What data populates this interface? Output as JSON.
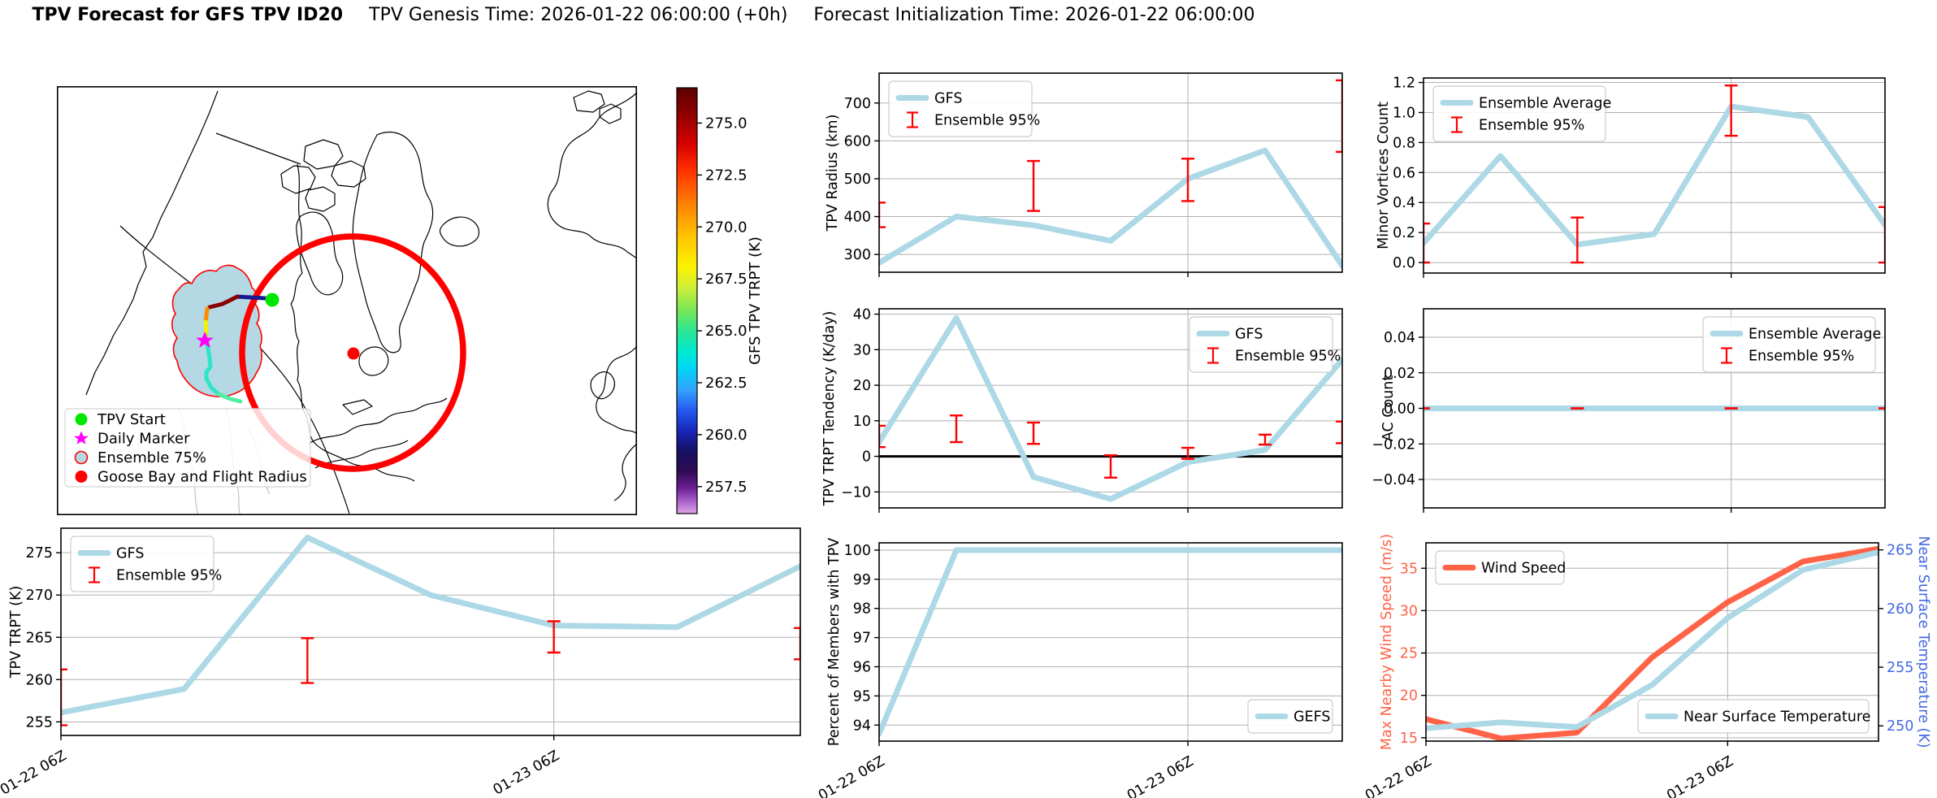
{
  "title": {
    "main": "TPV Forecast for GFS TPV ID20",
    "genesis": "TPV Genesis Time: 2026-01-22 06:00:00 (+0h)",
    "init": "Forecast Initialization Time: 2026-01-22 06:00:00"
  },
  "colors": {
    "series_blue": "#add8e6",
    "error_red": "#ff0000",
    "wind_orange": "#ff6347",
    "temp_axis_blue": "#4169e1",
    "grid": "#b0b0b0",
    "ensemble_fill": "#b4d8e4",
    "tpv_start_green": "#00e600",
    "daily_marker_magenta": "#ff00ff",
    "flight_radius_red": "#ff0000"
  },
  "time_axis": {
    "n_points": 7,
    "tick_indices": [
      0,
      4
    ],
    "tick_labels": [
      "01-22 06Z",
      "01-23 06Z"
    ]
  },
  "map": {
    "legend": [
      {
        "label": "TPV Start",
        "marker": "circle",
        "color": "#00e600"
      },
      {
        "label": "Daily Marker",
        "marker": "star",
        "color": "#ff00ff"
      },
      {
        "label": "Ensemble 75%",
        "marker": "circle-outline",
        "color": "#b4d8e4",
        "edge": "#ff0000"
      },
      {
        "label": "Goose Bay and Flight Radius",
        "marker": "circle",
        "color": "#ff0000"
      }
    ],
    "colorbar": {
      "label": "GFS TPV TRPT (K)",
      "ticks": [
        275.0,
        272.5,
        270.0,
        267.5,
        265.0,
        262.5,
        260.0,
        257.5
      ],
      "vmin": 256.2,
      "vmax": 276.7,
      "stops": [
        [
          0.0,
          "#5a0000"
        ],
        [
          0.06,
          "#8f0000"
        ],
        [
          0.13,
          "#d40000"
        ],
        [
          0.19,
          "#ff2d00"
        ],
        [
          0.27,
          "#ff7e00"
        ],
        [
          0.35,
          "#ffc400"
        ],
        [
          0.42,
          "#fdf300"
        ],
        [
          0.47,
          "#cdef3a"
        ],
        [
          0.52,
          "#7ce654"
        ],
        [
          0.57,
          "#2ee593"
        ],
        [
          0.62,
          "#00ead2"
        ],
        [
          0.66,
          "#00d5f5"
        ],
        [
          0.71,
          "#35a1ff"
        ],
        [
          0.76,
          "#2456ee"
        ],
        [
          0.81,
          "#1822b2"
        ],
        [
          0.855,
          "#151060"
        ],
        [
          0.9,
          "#2e0b54"
        ],
        [
          0.94,
          "#6b1e92"
        ],
        [
          0.97,
          "#a85fc8"
        ],
        [
          1.0,
          "#dba5e2"
        ]
      ]
    },
    "track_segment_colors": [
      "#cfa3ee",
      "#181890",
      "#8b0000",
      "#ff8c00",
      "#f2f200",
      "#bfe84a",
      "#2ee5c8",
      "#52eea2"
    ]
  },
  "chart_data": [
    {
      "id": "tpv_trpt",
      "type": "line",
      "ylabel": "TPV TRPT (K)",
      "ylim": [
        253.4,
        277.9
      ],
      "yticks": [
        {
          "v": 255,
          "t": "255"
        },
        {
          "v": 260,
          "t": "260"
        },
        {
          "v": 265,
          "t": "265"
        },
        {
          "v": 270,
          "t": "270"
        },
        {
          "v": 275,
          "t": "275"
        }
      ],
      "series": [
        {
          "name": "GFS",
          "color": "#add8e6",
          "width": 7,
          "values": [
            256.1,
            258.9,
            276.8,
            270.0,
            266.4,
            266.2,
            273.4
          ]
        }
      ],
      "errorbars": [
        {
          "x": 0,
          "lo": 254.6,
          "hi": 261.2
        },
        {
          "x": 2,
          "lo": 259.6,
          "hi": 264.9
        },
        {
          "x": 4,
          "lo": 263.2,
          "hi": 266.9
        },
        {
          "x": 6,
          "lo": 262.4,
          "hi": 266.1
        }
      ],
      "legends": [
        {
          "loc": "upper left",
          "items": [
            {
              "label": "GFS",
              "swatch": "line",
              "color": "#add8e6"
            },
            {
              "label": "Ensemble 95%",
              "swatch": "errorbar",
              "color": "#ff0000"
            }
          ]
        }
      ],
      "show_xticks": true
    },
    {
      "id": "tpv_radius",
      "type": "line",
      "ylabel": "TPV Radius (km)",
      "ylim": [
        253,
        779
      ],
      "yticks": [
        {
          "v": 300,
          "t": "300"
        },
        {
          "v": 400,
          "t": "400"
        },
        {
          "v": 500,
          "t": "500"
        },
        {
          "v": 600,
          "t": "600"
        },
        {
          "v": 700,
          "t": "700"
        }
      ],
      "series": [
        {
          "name": "GFS",
          "color": "#add8e6",
          "width": 7,
          "values": [
            278,
            400,
            377,
            336,
            500,
            575,
            270
          ]
        }
      ],
      "errorbars": [
        {
          "x": 0,
          "lo": 372,
          "hi": 437
        },
        {
          "x": 2,
          "lo": 415,
          "hi": 547
        },
        {
          "x": 4,
          "lo": 441,
          "hi": 553
        },
        {
          "x": 6,
          "lo": 571,
          "hi": 760
        }
      ],
      "legends": [
        {
          "loc": "upper left",
          "items": [
            {
              "label": "GFS",
              "swatch": "line",
              "color": "#add8e6"
            },
            {
              "label": "Ensemble 95%",
              "swatch": "errorbar",
              "color": "#ff0000"
            }
          ]
        }
      ],
      "show_xticks": false
    },
    {
      "id": "tendency",
      "type": "line",
      "ylabel": "TPV TRPT Tendency (K/day)",
      "ylim": [
        -14.5,
        41.5
      ],
      "yticks": [
        {
          "v": -10,
          "t": "−10"
        },
        {
          "v": 0,
          "t": "0"
        },
        {
          "v": 10,
          "t": "10"
        },
        {
          "v": 20,
          "t": "20"
        },
        {
          "v": 30,
          "t": "30"
        },
        {
          "v": 40,
          "t": "40"
        }
      ],
      "hline": 0,
      "series": [
        {
          "name": "GFS",
          "color": "#add8e6",
          "width": 7,
          "values": [
            4.0,
            38.9,
            -5.8,
            -12.0,
            -1.6,
            1.8,
            27.2
          ]
        }
      ],
      "errorbars": [
        {
          "x": 0,
          "lo": 2.6,
          "hi": 8.6
        },
        {
          "x": 1,
          "lo": 4.0,
          "hi": 11.5
        },
        {
          "x": 2,
          "lo": 3.5,
          "hi": 9.5
        },
        {
          "x": 3,
          "lo": -6.0,
          "hi": 0.3
        },
        {
          "x": 4,
          "lo": -0.7,
          "hi": 2.4
        },
        {
          "x": 5,
          "lo": 3.3,
          "hi": 6.1
        },
        {
          "x": 6,
          "lo": 3.7,
          "hi": 9.8
        }
      ],
      "legends": [
        {
          "loc": "upper right",
          "items": [
            {
              "label": "GFS",
              "swatch": "line",
              "color": "#add8e6"
            },
            {
              "label": "Ensemble 95%",
              "swatch": "errorbar",
              "color": "#ff0000"
            }
          ]
        }
      ],
      "show_xticks": false
    },
    {
      "id": "percent",
      "type": "line",
      "ylabel": "Percent of Members with TPV",
      "ylim": [
        93.45,
        100.25
      ],
      "yticks": [
        {
          "v": 94,
          "t": "94"
        },
        {
          "v": 95,
          "t": "95"
        },
        {
          "v": 96,
          "t": "96"
        },
        {
          "v": 97,
          "t": "97"
        },
        {
          "v": 98,
          "t": "98"
        },
        {
          "v": 99,
          "t": "99"
        },
        {
          "v": 100,
          "t": "100"
        }
      ],
      "series": [
        {
          "name": "GEFS",
          "color": "#add8e6",
          "width": 7,
          "values": [
            93.7,
            100,
            100,
            100,
            100,
            100,
            100
          ]
        }
      ],
      "errorbars": [],
      "legends": [
        {
          "loc": "lower right",
          "items": [
            {
              "label": "GEFS",
              "swatch": "line",
              "color": "#add8e6"
            }
          ]
        }
      ],
      "show_xticks": true
    },
    {
      "id": "minor_vortices",
      "type": "line",
      "ylabel": "Minor Vortices Count",
      "ylim": [
        -0.07,
        1.23
      ],
      "yticks": [
        {
          "v": 0,
          "t": "0.0"
        },
        {
          "v": 0.2,
          "t": "0.2"
        },
        {
          "v": 0.4,
          "t": "0.4"
        },
        {
          "v": 0.6,
          "t": "0.6"
        },
        {
          "v": 0.8,
          "t": "0.8"
        },
        {
          "v": 1.0,
          "t": "1.0"
        },
        {
          "v": 1.2,
          "t": "1.2"
        }
      ],
      "series": [
        {
          "name": "Ensemble Average",
          "color": "#add8e6",
          "width": 7,
          "values": [
            0.13,
            0.71,
            0.12,
            0.19,
            1.04,
            0.97,
            0.25
          ]
        }
      ],
      "errorbars": [
        {
          "x": 0,
          "lo": 0.0,
          "hi": 0.26
        },
        {
          "x": 2,
          "lo": 0.0,
          "hi": 0.3
        },
        {
          "x": 4,
          "lo": 0.845,
          "hi": 1.18
        },
        {
          "x": 6,
          "lo": 0.0,
          "hi": 0.37
        }
      ],
      "legends": [
        {
          "loc": "upper left",
          "items": [
            {
              "label": "Ensemble Average",
              "swatch": "line",
              "color": "#add8e6"
            },
            {
              "label": "Ensemble 95%",
              "swatch": "errorbar",
              "color": "#ff0000"
            }
          ]
        }
      ],
      "show_xticks": false
    },
    {
      "id": "ac_count",
      "type": "line",
      "ylabel": "AC Count",
      "ylim": [
        -0.056,
        0.056
      ],
      "yticks": [
        {
          "v": -0.04,
          "t": "−0.04"
        },
        {
          "v": -0.02,
          "t": "−0.02"
        },
        {
          "v": 0,
          "t": "0.00"
        },
        {
          "v": 0.02,
          "t": "0.02"
        },
        {
          "v": 0.04,
          "t": "0.04"
        }
      ],
      "series": [
        {
          "name": "Ensemble Average",
          "color": "#add8e6",
          "width": 7,
          "values": [
            0,
            0,
            0,
            0,
            0,
            0,
            0
          ]
        }
      ],
      "errorbars": [
        {
          "x": 0,
          "lo": 0,
          "hi": 0
        },
        {
          "x": 2,
          "lo": 0,
          "hi": 0
        },
        {
          "x": 4,
          "lo": 0,
          "hi": 0
        },
        {
          "x": 6,
          "lo": 0,
          "hi": 0
        }
      ],
      "legends": [
        {
          "loc": "upper right",
          "items": [
            {
              "label": "Ensemble Average",
              "swatch": "line",
              "color": "#add8e6"
            },
            {
              "label": "Ensemble 95%",
              "swatch": "errorbar",
              "color": "#ff0000"
            }
          ]
        }
      ],
      "show_xticks": false
    },
    {
      "id": "wind_temp",
      "type": "line",
      "ylabel": "Max Nearby Wind Speed (m/s)",
      "ylabel_color": "#ff6347",
      "tick_color": "#ff6347",
      "ylim": [
        14.6,
        38.0
      ],
      "yticks": [
        {
          "v": 15,
          "t": "15"
        },
        {
          "v": 20,
          "t": "20"
        },
        {
          "v": 25,
          "t": "25"
        },
        {
          "v": 30,
          "t": "30"
        },
        {
          "v": 35,
          "t": "35"
        }
      ],
      "right_axis": {
        "label": "Near Surface Temperature (K)",
        "color": "#4169e1",
        "ylim": [
          248.7,
          265.6
        ],
        "yticks": [
          {
            "v": 250,
            "t": "250"
          },
          {
            "v": 255,
            "t": "255"
          },
          {
            "v": 260,
            "t": "260"
          },
          {
            "v": 265,
            "t": "265"
          }
        ]
      },
      "series": [
        {
          "name": "Wind Speed",
          "color": "#ff6347",
          "width": 7,
          "values": [
            17.2,
            14.9,
            15.6,
            24.5,
            31.0,
            35.8,
            37.3
          ]
        },
        {
          "name": "Near Surface Temperature",
          "color": "#add8e6",
          "width": 7,
          "axis": "right",
          "values": [
            249.8,
            250.3,
            249.9,
            253.5,
            259.2,
            263.3,
            264.8
          ]
        }
      ],
      "errorbars": [],
      "legends": [
        {
          "loc": "upper left",
          "items": [
            {
              "label": "Wind Speed",
              "swatch": "line",
              "color": "#ff6347"
            }
          ]
        },
        {
          "loc": "lower right",
          "items": [
            {
              "label": "Near Surface Temperature",
              "swatch": "line",
              "color": "#add8e6"
            }
          ]
        }
      ],
      "show_xticks": true
    }
  ]
}
